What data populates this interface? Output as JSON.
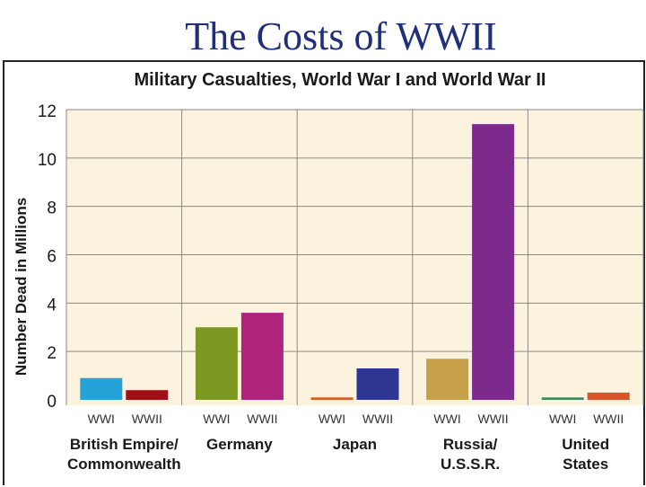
{
  "slide": {
    "title": "The Costs of WWII"
  },
  "chart_data": {
    "type": "bar",
    "title": "Military Casualties, World War I and World War II",
    "xlabel": "",
    "ylabel": "Number Dead in Millions",
    "ylim": [
      0,
      12
    ],
    "yticks": [
      0,
      2,
      4,
      6,
      8,
      10,
      12
    ],
    "grid": true,
    "categories": [
      {
        "label_lines": [
          "British Empire/",
          "Commonwealth"
        ]
      },
      {
        "label_lines": [
          "Germany"
        ]
      },
      {
        "label_lines": [
          "Japan"
        ]
      },
      {
        "label_lines": [
          "Russia/",
          "U.S.S.R."
        ]
      },
      {
        "label_lines": [
          "United",
          "States"
        ]
      }
    ],
    "series": [
      {
        "name": "WWI",
        "values": [
          0.9,
          3.0,
          0.1,
          1.7,
          0.1
        ],
        "colors": [
          "#23a3d8",
          "#7c9a22",
          "#d85a22",
          "#c8a04a",
          "#3f8a62"
        ]
      },
      {
        "name": "WWII",
        "values": [
          0.4,
          3.6,
          1.3,
          11.4,
          0.3
        ],
        "colors": [
          "#9e1016",
          "#b0247e",
          "#2e3592",
          "#7d2a8c",
          "#d8552a"
        ]
      }
    ],
    "colors": {
      "plot_background": "#fbf3dd",
      "gridline": "#8a8a8a",
      "title_text": "#1a1a1a",
      "slide_title": "#1f2f7a"
    }
  }
}
